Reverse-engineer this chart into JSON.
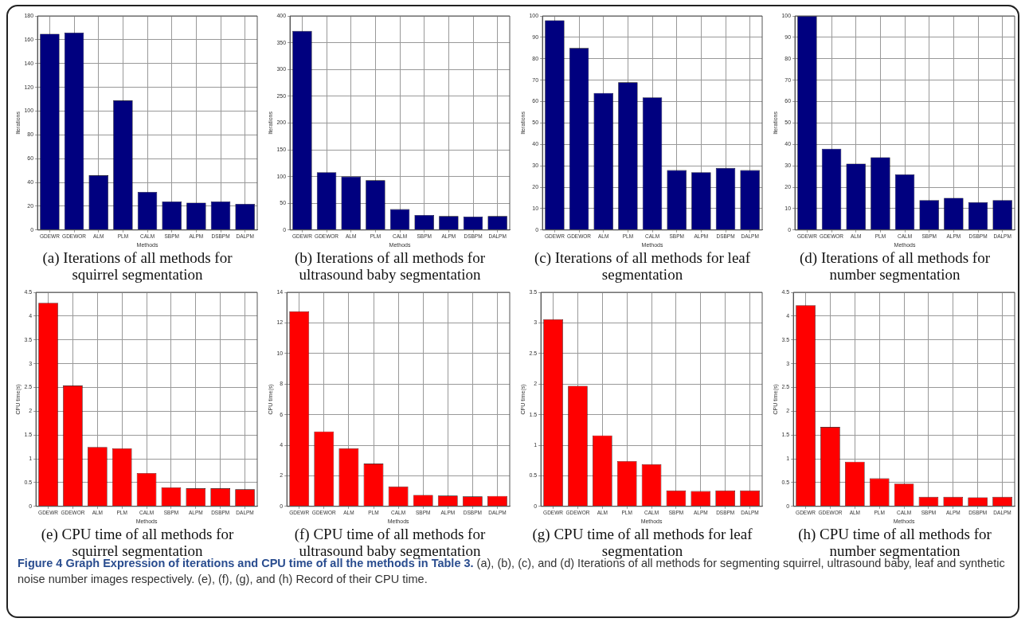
{
  "chart_data": [
    {
      "type": "bar",
      "title": "(a) Iterations of all methods for squirrel segmentation",
      "xlabel": "Methods",
      "ylabel": "Iterations",
      "categories": [
        "GDEWR",
        "GDEWOR",
        "ALM",
        "PLM",
        "CALM",
        "SBPM",
        "ALPM",
        "DSBPM",
        "DALPM"
      ],
      "color": "#00007f",
      "values": [
        165,
        166,
        46,
        109,
        32,
        24,
        23,
        24,
        22
      ],
      "ylim": [
        0,
        180
      ],
      "yticks": [
        0,
        20,
        40,
        60,
        80,
        100,
        120,
        140,
        160,
        180
      ],
      "grid": true,
      "annotations": [
        "Figure 4 Graph Expression of iterations and CPU time of all the methods in Table 3.",
        "(a), (b), (c), and (d) Iterations of all methods for segmenting squirrel, ultrasound baby, leaf and synthetic noise number images respectively. (e), (f), (g), and (h) Record of their CPU time."
      ]
    },
    {
      "type": "bar",
      "title": "(b) Iterations of all methods for ultrasound baby segmentation",
      "xlabel": "Methods",
      "ylabel": "Iterations",
      "categories": [
        "GDEWR",
        "GDEWOR",
        "ALM",
        "PLM",
        "CALM",
        "SBPM",
        "ALPM",
        "DSBPM",
        "DALPM"
      ],
      "color": "#00007f",
      "values": [
        372,
        108,
        100,
        93,
        39,
        28,
        26,
        25,
        26
      ],
      "ylim": [
        0,
        400
      ],
      "yticks": [
        0,
        50,
        100,
        150,
        200,
        250,
        300,
        350,
        400
      ],
      "grid": true
    },
    {
      "type": "bar",
      "title": "(c) Iterations of all methods for leaf segmentation",
      "xlabel": "Methods",
      "ylabel": "Iterations",
      "categories": [
        "GDEWR",
        "GDEWOR",
        "ALM",
        "PLM",
        "CALM",
        "SBPM",
        "ALPM",
        "DSBPM",
        "DALPM"
      ],
      "color": "#00007f",
      "values": [
        98,
        85,
        64,
        69,
        62,
        28,
        27,
        29,
        28
      ],
      "ylim": [
        0,
        100
      ],
      "yticks": [
        0,
        10,
        20,
        30,
        40,
        50,
        60,
        70,
        80,
        90,
        100
      ],
      "grid": true
    },
    {
      "type": "bar",
      "title": "(d) Iterations of all methods for number segmentation",
      "xlabel": "Methods",
      "ylabel": "Iterations",
      "categories": [
        "GDEWR",
        "GDEWOR",
        "ALM",
        "PLM",
        "CALM",
        "SBPM",
        "ALPM",
        "DSBPM",
        "DALPM"
      ],
      "color": "#00007f",
      "values": [
        100,
        38,
        31,
        34,
        26,
        14,
        15,
        13,
        14
      ],
      "ylim": [
        0,
        100
      ],
      "yticks": [
        0,
        10,
        20,
        30,
        40,
        50,
        60,
        70,
        80,
        90,
        100
      ],
      "grid": true
    },
    {
      "type": "bar",
      "title": "(e) CPU time of all methods for squirrel segmentation",
      "xlabel": "Methods",
      "ylabel": "CPU time(s)",
      "categories": [
        "GDEWR",
        "GDEWOR",
        "ALM",
        "PLM",
        "CALM",
        "SBPM",
        "ALPM",
        "DSBPM",
        "DALPM"
      ],
      "color": "#ff0000",
      "values": [
        4.28,
        2.54,
        1.25,
        1.22,
        0.7,
        0.4,
        0.38,
        0.38,
        0.36
      ],
      "ylim": [
        0,
        4.5
      ],
      "yticks": [
        0,
        0.5,
        1,
        1.5,
        2,
        2.5,
        3,
        3.5,
        4,
        4.5
      ],
      "grid": true
    },
    {
      "type": "bar",
      "title": "(f) CPU time of all methods for ultrasound baby segmentation",
      "xlabel": "Methods",
      "ylabel": "CPU time(s)",
      "categories": [
        "GDEWR",
        "GDEWOR",
        "ALM",
        "PLM",
        "CALM",
        "SBPM",
        "ALPM",
        "DSBPM",
        "DALPM"
      ],
      "color": "#ff0000",
      "values": [
        12.75,
        4.9,
        3.8,
        2.8,
        1.3,
        0.75,
        0.7,
        0.65,
        0.68
      ],
      "ylim": [
        0,
        14
      ],
      "yticks": [
        0,
        2,
        4,
        6,
        8,
        10,
        12,
        14
      ],
      "grid": true
    },
    {
      "type": "bar",
      "title": "(g) CPU time of all methods for leaf segmentation",
      "xlabel": "Methods",
      "ylabel": "CPU time(s)",
      "categories": [
        "GDEWR",
        "GDEWOR",
        "ALM",
        "PLM",
        "CALM",
        "SBPM",
        "ALPM",
        "DSBPM",
        "DALPM"
      ],
      "color": "#ff0000",
      "values": [
        3.06,
        1.97,
        1.16,
        0.74,
        0.69,
        0.26,
        0.25,
        0.26,
        0.26
      ],
      "ylim": [
        0,
        3.5
      ],
      "yticks": [
        0,
        0.5,
        1,
        1.5,
        2,
        2.5,
        3,
        3.5
      ],
      "grid": true
    },
    {
      "type": "bar",
      "title": "(h) CPU time of all methods for number segmentation",
      "xlabel": "Methods",
      "ylabel": "CPU time(s)",
      "categories": [
        "GDEWR",
        "GDEWOR",
        "ALM",
        "PLM",
        "CALM",
        "SBPM",
        "ALPM",
        "DSBPM",
        "DALPM"
      ],
      "color": "#ff0000",
      "values": [
        4.23,
        1.67,
        0.94,
        0.59,
        0.48,
        0.2,
        0.2,
        0.19,
        0.2
      ],
      "ylim": [
        0,
        4.5
      ],
      "yticks": [
        0,
        0.5,
        1,
        1.5,
        2,
        2.5,
        3,
        3.5,
        4,
        4.5
      ],
      "grid": true
    }
  ]
}
